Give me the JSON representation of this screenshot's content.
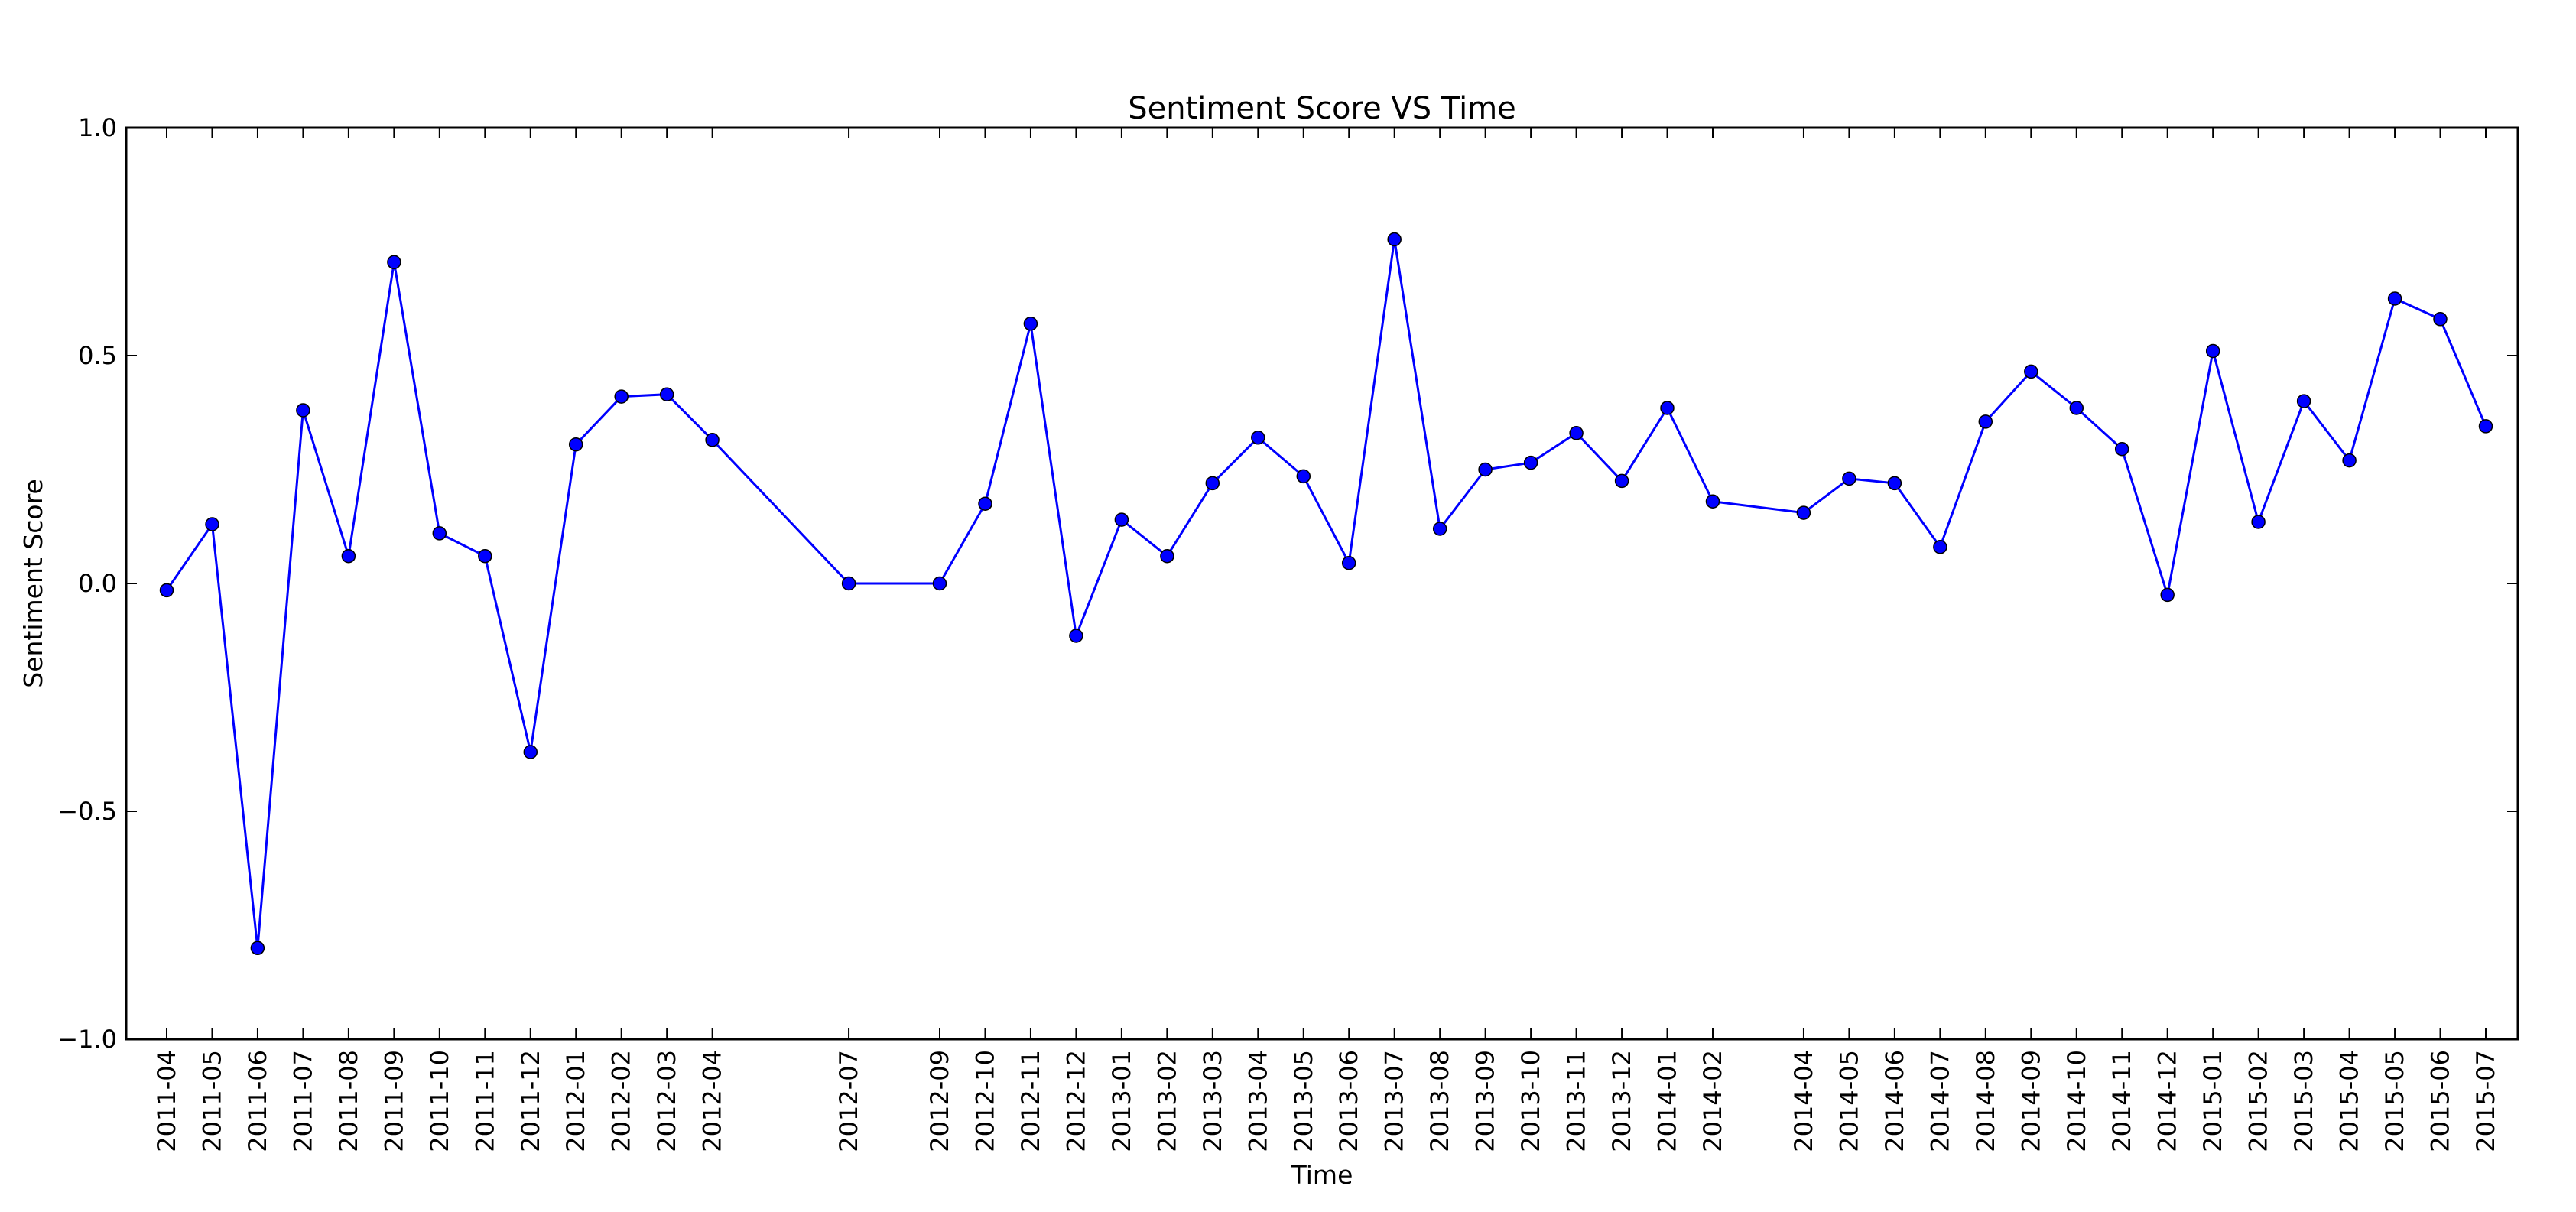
{
  "chart_data": {
    "type": "line",
    "title": "Sentiment Score VS Time",
    "xlabel": "Time",
    "ylabel": "Sentiment Score",
    "ylim": [
      -1.0,
      1.0
    ],
    "yticks": [
      -1.0,
      -0.5,
      0.0,
      0.5,
      1.0
    ],
    "ytick_labels": [
      "−1.0",
      "−0.5",
      "0.0",
      "0.5",
      "1.0"
    ],
    "grid": false,
    "series_color": "#0000ff",
    "x": [
      "2011-04",
      "2011-05",
      "2011-06",
      "2011-07",
      "2011-08",
      "2011-09",
      "2011-10",
      "2011-11",
      "2011-12",
      "2012-01",
      "2012-02",
      "2012-03",
      "2012-04",
      "2012-07",
      "2012-09",
      "2012-10",
      "2012-11",
      "2012-12",
      "2013-01",
      "2013-02",
      "2013-03",
      "2013-04",
      "2013-05",
      "2013-06",
      "2013-07",
      "2013-08",
      "2013-09",
      "2013-10",
      "2013-11",
      "2013-12",
      "2014-01",
      "2014-02",
      "2014-04",
      "2014-05",
      "2014-06",
      "2014-07",
      "2014-08",
      "2014-09",
      "2014-10",
      "2014-11",
      "2014-12",
      "2015-01",
      "2015-02",
      "2015-03",
      "2015-04",
      "2015-05",
      "2015-06",
      "2015-07"
    ],
    "series": [
      {
        "values": [
          -0.015,
          0.13,
          -0.8,
          0.38,
          0.06,
          0.705,
          0.11,
          0.06,
          -0.37,
          0.305,
          0.41,
          0.415,
          0.315,
          0.0,
          0.0,
          0.175,
          0.57,
          -0.115,
          0.14,
          0.06,
          0.22,
          0.32,
          0.235,
          0.045,
          0.755,
          0.12,
          0.25,
          0.265,
          0.33,
          0.225,
          0.385,
          0.18,
          0.155,
          0.23,
          0.22,
          0.08,
          0.355,
          0.465,
          0.385,
          0.295,
          -0.025,
          0.51,
          0.135,
          0.4,
          0.27,
          0.625,
          0.58,
          0.345
        ]
      }
    ]
  }
}
